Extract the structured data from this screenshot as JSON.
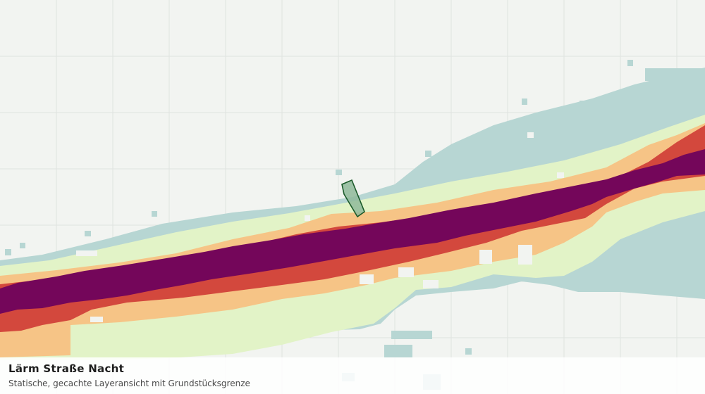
{
  "layer": {
    "title": "Lärm Straße Nacht",
    "subtitle": "Statische, gecachte Layeransicht mit Grundstücksgrenze"
  },
  "colors": {
    "background": "#f2f4f1",
    "grid": "#dfe3df",
    "band_lowest": "#b7d6d3",
    "band_low": "#e2f3c7",
    "band_medium": "#f6c486",
    "band_high": "#d3483d",
    "band_highest": "#74065a",
    "parcel_fill": "#8fb89a",
    "parcel_stroke": "#1b5a2a"
  },
  "icons": {
    "parcel": "parcel-boundary-polygon"
  }
}
